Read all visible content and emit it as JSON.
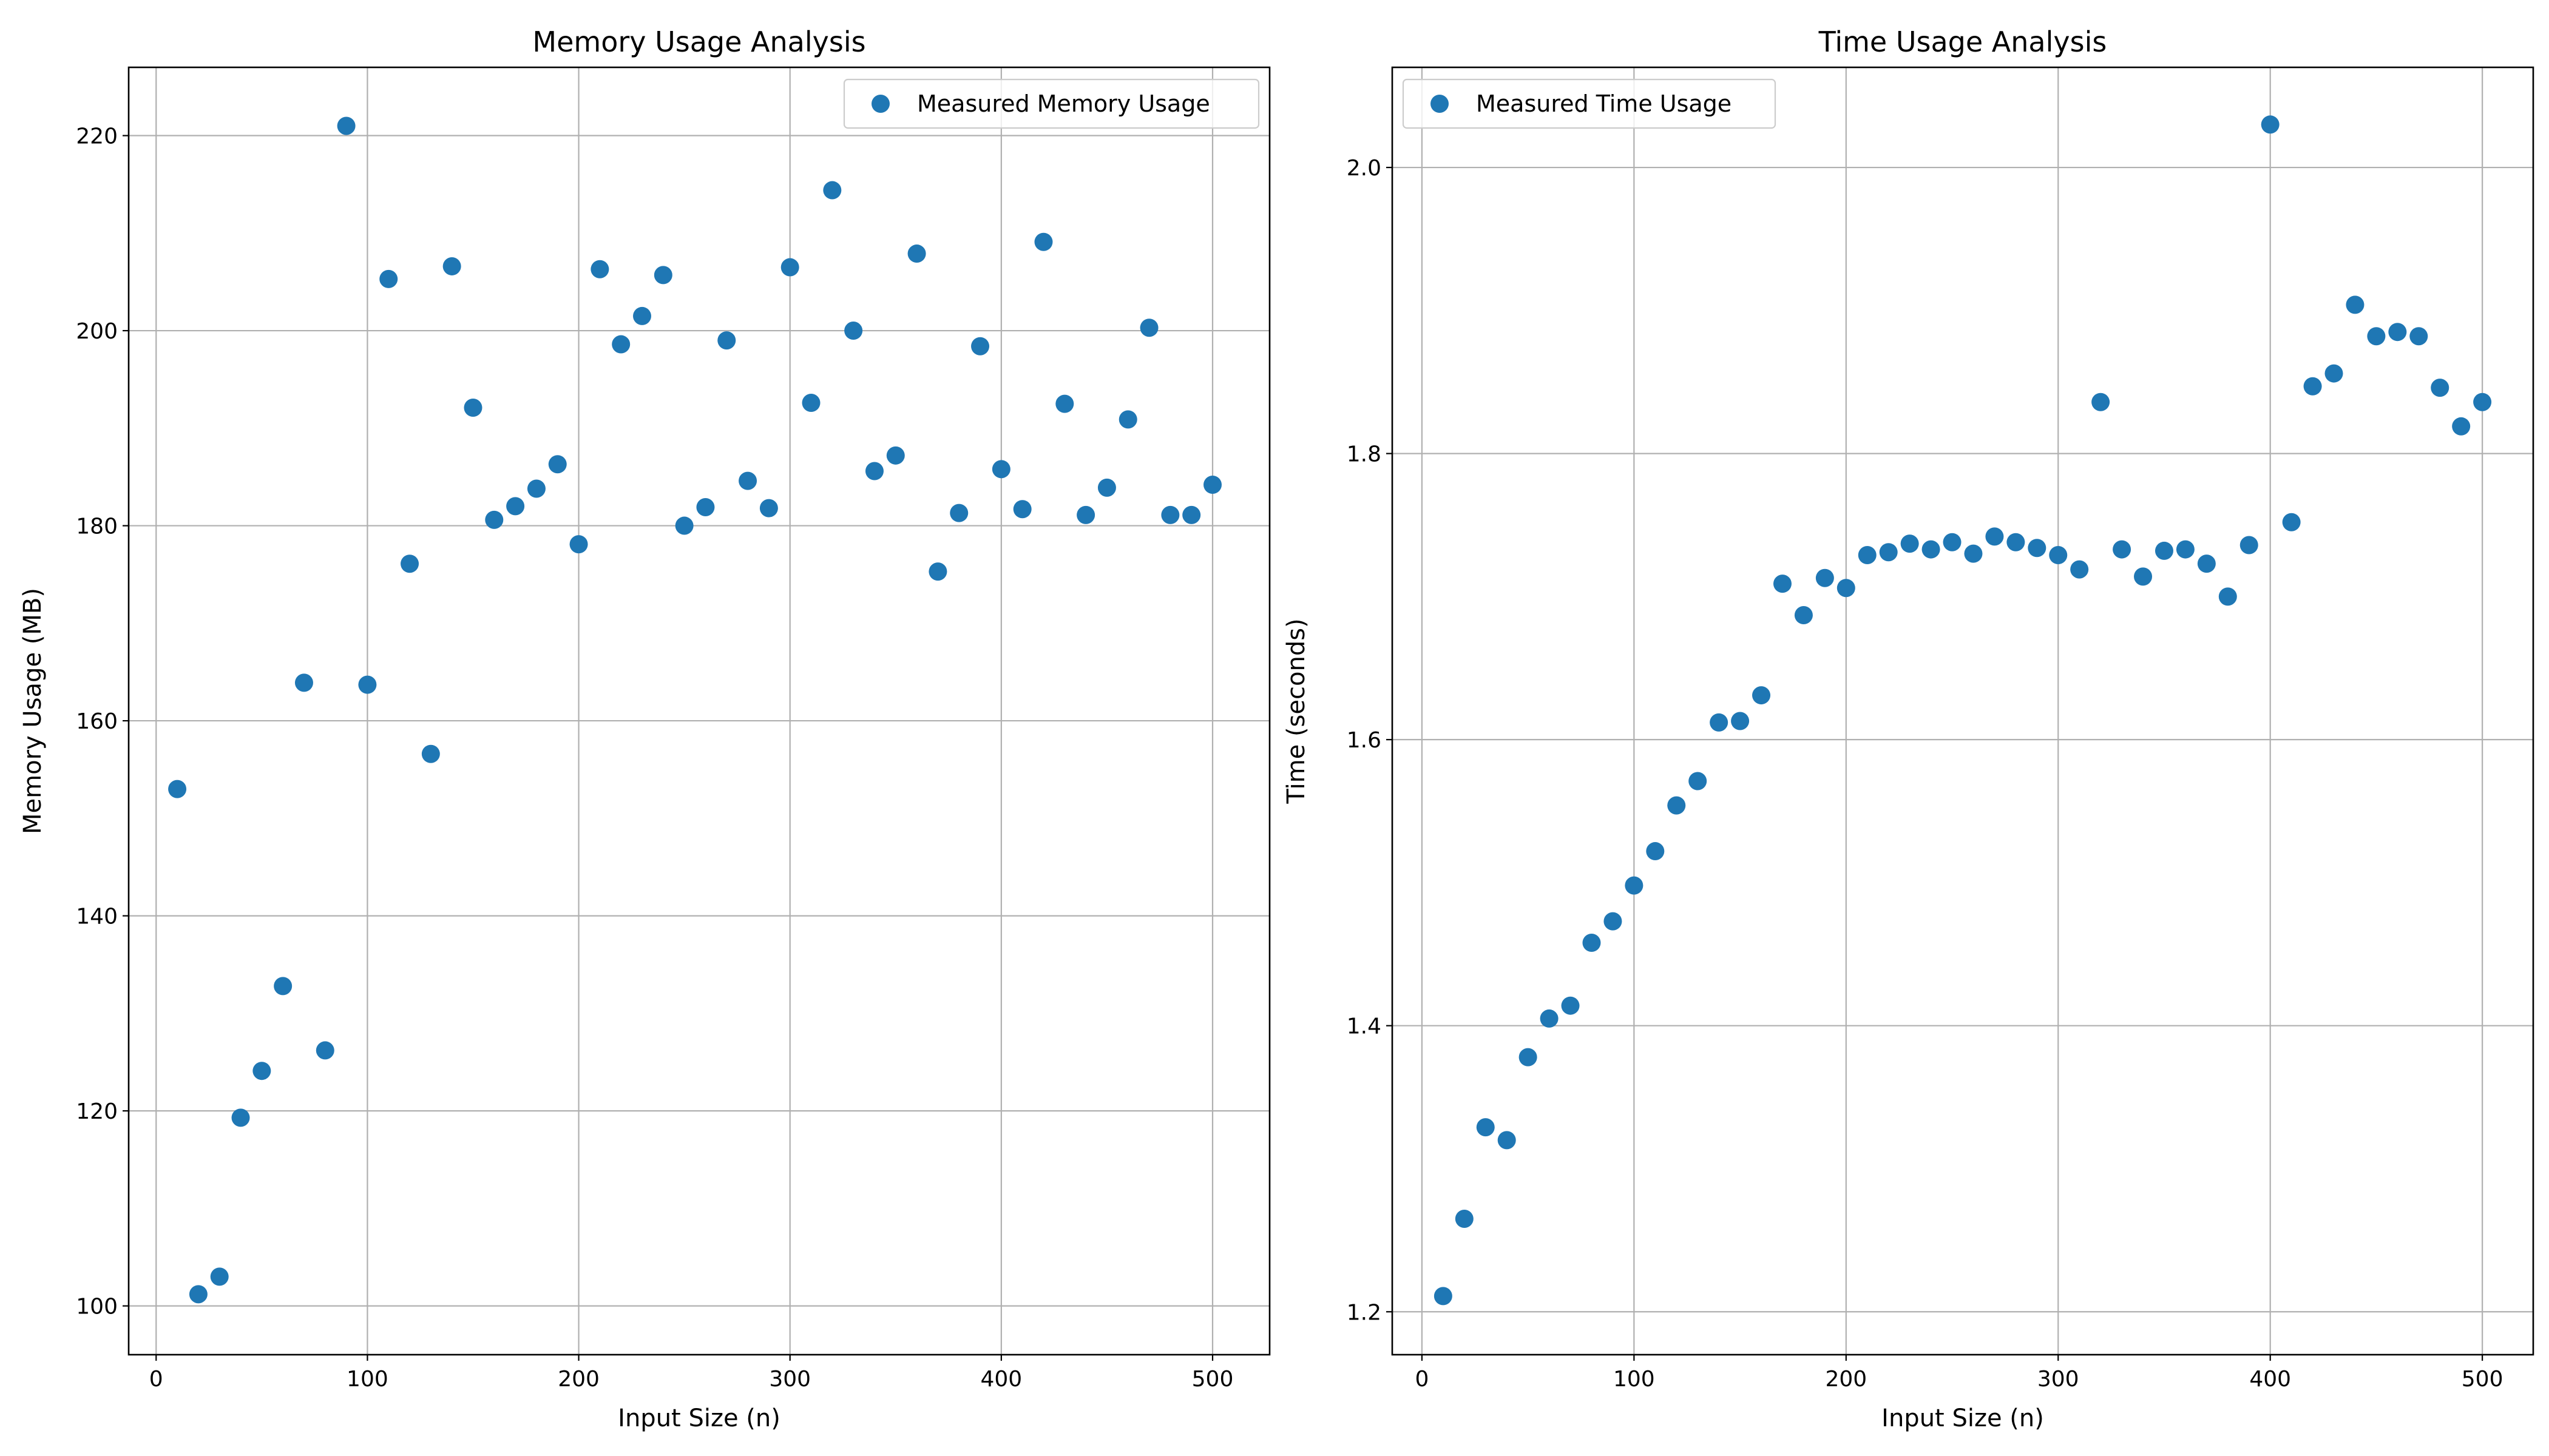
{
  "chart_data": [
    {
      "type": "scatter",
      "title": "Memory Usage Analysis",
      "xlabel": "Input Size (n)",
      "ylabel": "Memory Usage (MB)",
      "xlim": [
        -13,
        527
      ],
      "ylim": [
        95,
        227
      ],
      "xticks": [
        0,
        100,
        200,
        300,
        400,
        500
      ],
      "yticks": [
        100,
        120,
        140,
        160,
        180,
        200,
        220
      ],
      "grid": true,
      "legend_position": "top-right",
      "colors": {
        "marker": "#1f77b4"
      },
      "series": [
        {
          "name": "Measured Memory Usage",
          "x": [
            10,
            20,
            30,
            40,
            50,
            60,
            70,
            80,
            90,
            100,
            110,
            120,
            130,
            140,
            150,
            160,
            170,
            180,
            190,
            200,
            210,
            220,
            230,
            240,
            250,
            260,
            270,
            280,
            290,
            300,
            310,
            320,
            330,
            340,
            350,
            360,
            370,
            380,
            390,
            400,
            410,
            420,
            430,
            440,
            450,
            460,
            470,
            480,
            490,
            500
          ],
          "y": [
            153.0,
            101.2,
            103.0,
            119.3,
            124.1,
            132.8,
            163.9,
            126.2,
            221.0,
            163.7,
            205.3,
            176.1,
            156.6,
            206.6,
            192.1,
            180.6,
            182.0,
            183.8,
            186.3,
            178.1,
            206.3,
            198.6,
            201.5,
            205.7,
            180.0,
            181.9,
            199.0,
            184.6,
            181.8,
            206.5,
            192.6,
            214.4,
            200.0,
            185.6,
            187.2,
            207.9,
            175.3,
            181.3,
            198.4,
            185.8,
            181.7,
            209.1,
            192.5,
            181.1,
            183.9,
            190.9,
            200.3,
            181.1,
            181.1,
            184.2
          ]
        }
      ]
    },
    {
      "type": "scatter",
      "title": "Time Usage Analysis",
      "xlabel": "Input Size (n)",
      "ylabel": "Time (seconds)",
      "xlim": [
        -14,
        524
      ],
      "ylim": [
        1.17,
        2.07
      ],
      "xticks": [
        0,
        100,
        200,
        300,
        400,
        500
      ],
      "yticks": [
        1.2,
        1.4,
        1.6,
        1.8,
        2.0
      ],
      "ytick_labels": [
        "1.2",
        "1.4",
        "1.6",
        "1.8",
        "2.0"
      ],
      "grid": true,
      "legend_position": "top-left",
      "colors": {
        "marker": "#1f77b4"
      },
      "series": [
        {
          "name": "Measured Time Usage",
          "x": [
            10,
            20,
            30,
            40,
            50,
            60,
            70,
            80,
            90,
            100,
            110,
            120,
            130,
            140,
            150,
            160,
            170,
            180,
            190,
            200,
            210,
            220,
            230,
            240,
            250,
            260,
            270,
            280,
            290,
            300,
            310,
            320,
            330,
            340,
            350,
            360,
            370,
            380,
            390,
            400,
            410,
            420,
            430,
            440,
            450,
            460,
            470,
            480,
            490,
            500
          ],
          "y": [
            1.211,
            1.265,
            1.329,
            1.32,
            1.378,
            1.405,
            1.414,
            1.458,
            1.473,
            1.498,
            1.522,
            1.554,
            1.571,
            1.612,
            1.613,
            1.631,
            1.709,
            1.687,
            1.713,
            1.706,
            1.729,
            1.731,
            1.737,
            1.733,
            1.738,
            1.73,
            1.742,
            1.738,
            1.734,
            1.729,
            1.719,
            1.836,
            1.733,
            1.714,
            1.732,
            1.733,
            1.723,
            1.7,
            1.736,
            2.03,
            1.752,
            1.847,
            1.856,
            1.904,
            1.882,
            1.885,
            1.882,
            1.846,
            1.819,
            1.836
          ]
        }
      ]
    }
  ]
}
